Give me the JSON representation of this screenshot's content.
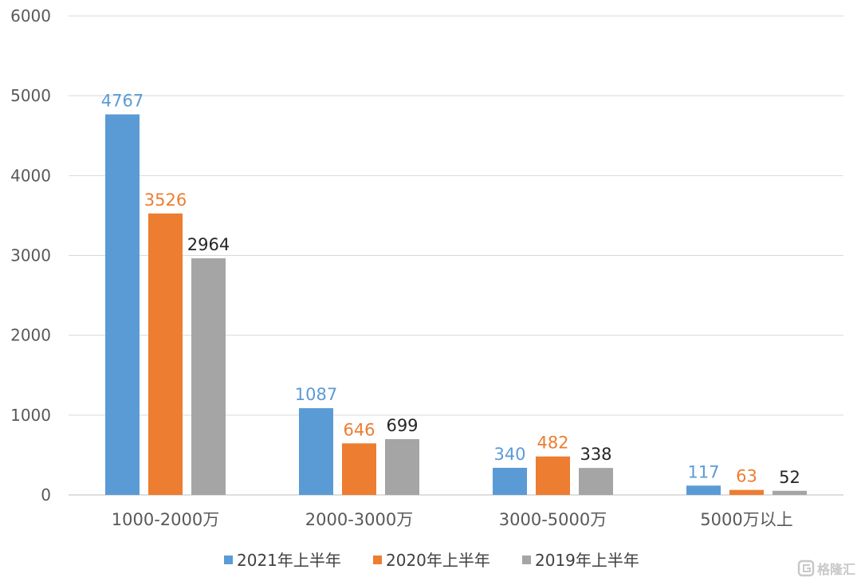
{
  "chart_data": {
    "type": "bar",
    "categories": [
      "1000-2000万",
      "2000-3000万",
      "3000-5000万",
      "5000万以上"
    ],
    "series": [
      {
        "name": "2021年上半年",
        "values": [
          4767,
          1087,
          340,
          117
        ],
        "color": "#5b9bd5",
        "label_color": "#5b9bd5"
      },
      {
        "name": "2020年上半年",
        "values": [
          3526,
          646,
          482,
          63
        ],
        "color": "#ed7d31",
        "label_color": "#ed7d31"
      },
      {
        "name": "2019年上半年",
        "values": [
          2964,
          699,
          338,
          52
        ],
        "color": "#a5a5a5",
        "label_color": "#262626"
      }
    ],
    "ylim": [
      0,
      6000
    ],
    "yticks": [
      0,
      1000,
      2000,
      3000,
      4000,
      5000,
      6000
    ],
    "grid": true,
    "legend_position": "bottom",
    "title": "",
    "xlabel": "",
    "ylabel": ""
  },
  "watermark": {
    "text": "格隆汇",
    "icon": "gelonghui-logo-icon"
  }
}
